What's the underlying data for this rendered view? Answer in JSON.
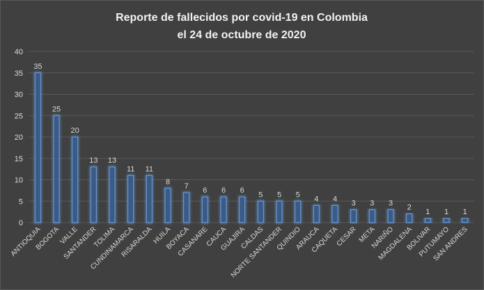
{
  "chart_data": {
    "type": "bar",
    "title": [
      "Reporte de fallecidos por covid-19 en Colombia",
      "el 24 de octubre de 2020"
    ],
    "xlabel": "",
    "ylabel": "",
    "ylim": [
      0,
      40
    ],
    "yticks": [
      0,
      5,
      10,
      15,
      20,
      25,
      30,
      35,
      40
    ],
    "grid": true,
    "legend": "none",
    "data_labels": true,
    "categories": [
      "ANTIOQUIA",
      "BOGOTA",
      "VALLE",
      "SANTANDER",
      "TOLIMA",
      "CUNDINAMARCA",
      "RISARALDA",
      "HUILA",
      "BOYACA",
      "CASANARE",
      "CAUCA",
      "GUAJIRA",
      "CALDAS",
      "NORTE SANTANDER",
      "QUINDIO",
      "ARAUCA",
      "CAQUETA",
      "CESAR",
      "META",
      "NARIÑO",
      "MAGDALENA",
      "BOLIVAR",
      "PUTUMAYO",
      "SAN ANDRES"
    ],
    "values": [
      35,
      25,
      20,
      13,
      13,
      11,
      11,
      8,
      7,
      6,
      6,
      6,
      5,
      5,
      5,
      4,
      4,
      3,
      3,
      3,
      2,
      1,
      1,
      1
    ],
    "colors": {
      "background": "#404040",
      "bar_fill": "#3c5a86",
      "bar_edge": "#6e9ddc",
      "bar_glow": "#5b9bd5",
      "grid": "#595959",
      "text": "#d9d9d9",
      "title": "#f2f2f2"
    }
  }
}
